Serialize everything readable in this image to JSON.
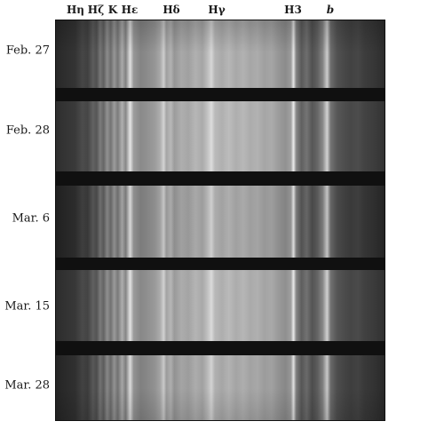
{
  "line_labels": [
    {
      "text": "Hη",
      "italic": false
    },
    {
      "text": "Hζ",
      "italic": false
    },
    {
      "text": "K",
      "italic": false
    },
    {
      "text": "Hε",
      "italic": false
    },
    {
      "text": "Hδ",
      "italic": false
    },
    {
      "text": "Hγ",
      "italic": false
    },
    {
      "text": "H3",
      "italic": false
    },
    {
      "text": "b",
      "italic": true
    }
  ],
  "dates": [
    "Feb. 27",
    "Feb. 28",
    "Mar. 6",
    "Mar. 15",
    "Mar. 28"
  ]
}
